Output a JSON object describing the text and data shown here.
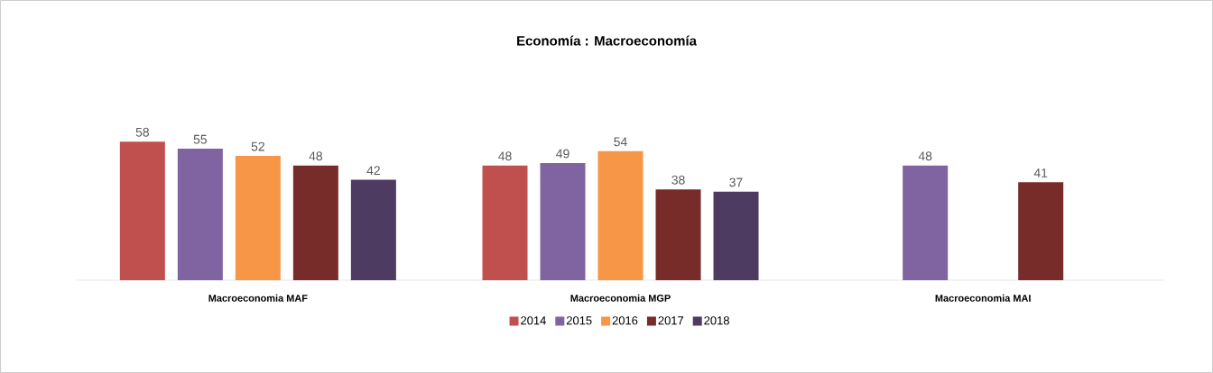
{
  "chart_data": {
    "type": "bar",
    "title": "Economía : Macroeconomía",
    "categories": [
      "Macroeconomia  MAF",
      "Macroeconomia MGP",
      "Macroeconomia MAI"
    ],
    "series": [
      {
        "name": "2014",
        "color": "#c0504d",
        "values": [
          58,
          48,
          null
        ]
      },
      {
        "name": "2015",
        "color": "#8064a2",
        "values": [
          55,
          49,
          48
        ]
      },
      {
        "name": "2016",
        "color": "#f79646",
        "values": [
          52,
          54,
          null
        ]
      },
      {
        "name": "2017",
        "color": "#772c2a",
        "values": [
          48,
          38,
          41
        ]
      },
      {
        "name": "2018",
        "color": "#4d3b62",
        "values": [
          42,
          37,
          null
        ]
      }
    ],
    "data_labels": true,
    "legend": "bottom"
  }
}
